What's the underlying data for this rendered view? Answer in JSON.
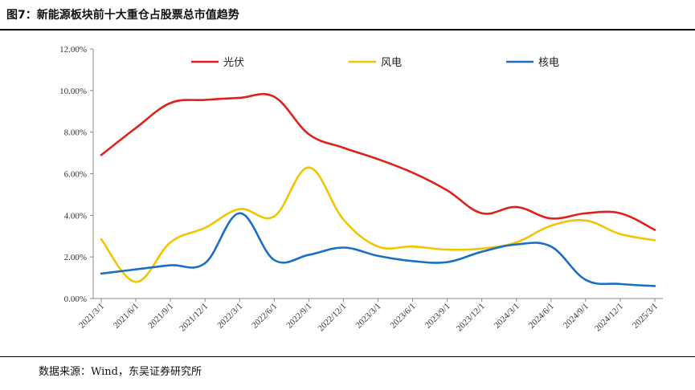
{
  "header": {
    "title": "图7：新能源板块前十大重仓占股票总市值趋势"
  },
  "footer": {
    "source": "数据来源：Wind，东吴证券研究所"
  },
  "chart_data": {
    "type": "line",
    "x": [
      "2021/3/1",
      "2021/6/1",
      "2021/9/1",
      "2021/12/1",
      "2022/3/1",
      "2022/6/1",
      "2022/9/1",
      "2022/12/1",
      "2023/3/1",
      "2023/6/1",
      "2023/9/1",
      "2023/12/1",
      "2024/3/1",
      "2024/6/1",
      "2024/9/1",
      "2024/12/1",
      "2025/3/1"
    ],
    "ylim": [
      0,
      12
    ],
    "yticks": [
      "0.00%",
      "2.00%",
      "4.00%",
      "6.00%",
      "8.00%",
      "10.00%",
      "12.00%"
    ],
    "legend_position": "top",
    "series": [
      {
        "name": "光伏",
        "color": "#e0201b",
        "values": [
          6.9,
          8.2,
          9.4,
          9.55,
          9.65,
          9.7,
          7.9,
          7.25,
          6.7,
          6.05,
          5.2,
          4.1,
          4.4,
          3.85,
          4.1,
          4.1,
          3.3
        ]
      },
      {
        "name": "风电",
        "color": "#f2c500",
        "values": [
          2.85,
          0.8,
          2.7,
          3.4,
          4.3,
          3.95,
          6.3,
          3.8,
          2.5,
          2.5,
          2.35,
          2.4,
          2.7,
          3.5,
          3.75,
          3.1,
          2.8
        ]
      },
      {
        "name": "核电",
        "color": "#1a6fc4",
        "values": [
          1.2,
          1.4,
          1.6,
          1.7,
          4.1,
          1.85,
          2.1,
          2.45,
          2.05,
          1.8,
          1.75,
          2.25,
          2.6,
          2.5,
          0.9,
          0.7,
          0.6
        ]
      }
    ]
  }
}
